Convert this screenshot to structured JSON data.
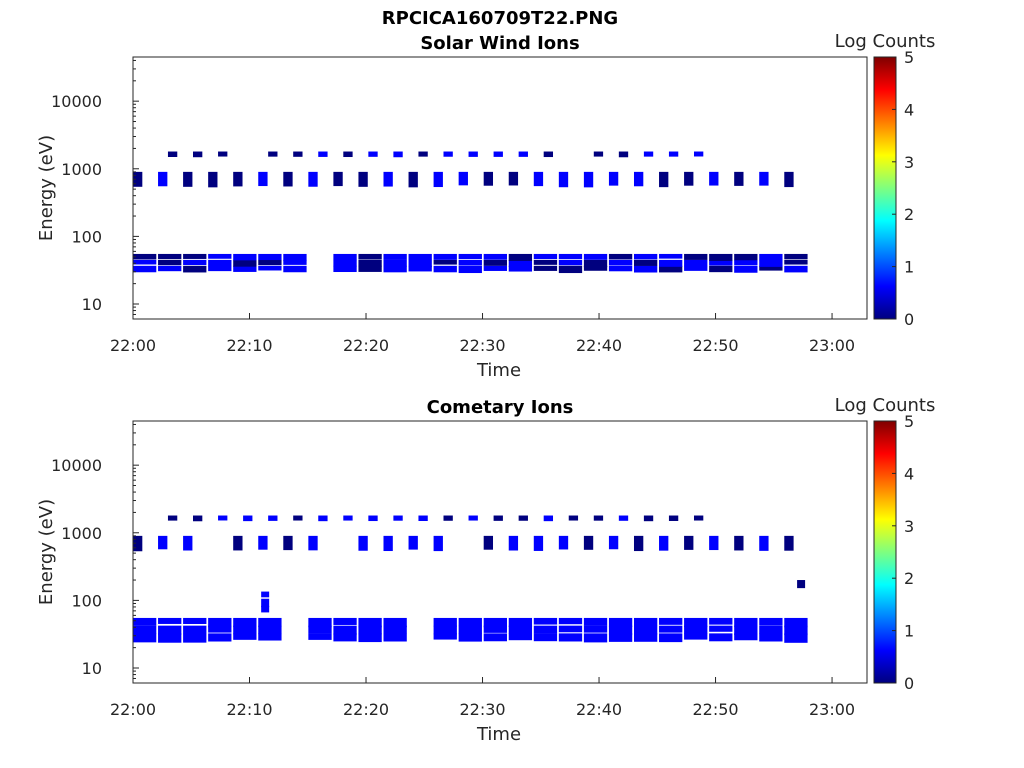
{
  "figure": {
    "title": "RPCICA160709T22.PNG"
  },
  "colors": {
    "axis": "#262626",
    "colormap": [
      "#00007f",
      "#0000ff",
      "#007fff",
      "#00ffff",
      "#7fff7f",
      "#ffff00",
      "#ff7f00",
      "#ff0000",
      "#7f0000"
    ]
  },
  "chart_data": [
    {
      "type": "heatmap",
      "title": "Solar Wind Ions",
      "xlabel": "Time",
      "ylabel": "Energy (eV)",
      "x_ticks": [
        "22:00",
        "22:10",
        "22:20",
        "22:30",
        "22:40",
        "22:50",
        "23:00"
      ],
      "xlim": [
        "22:00",
        "23:03"
      ],
      "y_scale": "log",
      "y_ticks": [
        "10",
        "100",
        "1000",
        "10000"
      ],
      "ylim": [
        6,
        45000
      ],
      "colorbar": {
        "label": "Log Counts",
        "ticks": [
          "0",
          "1",
          "2",
          "3",
          "4",
          "5"
        ],
        "range": [
          0,
          5
        ]
      },
      "bands": [
        {
          "energy_range_eV": [
            30,
            55
          ],
          "t_start": "22:00",
          "t_end": "22:57",
          "level": 0.6
        },
        {
          "energy_range_eV": [
            550,
            900
          ],
          "t_start": "22:00",
          "t_end": "22:57",
          "level": 0.5
        },
        {
          "energy_range_eV": [
            1500,
            1800
          ],
          "t_start": "22:03",
          "t_end": "22:49",
          "level": 0.5
        }
      ]
    },
    {
      "type": "heatmap",
      "title": "Cometary Ions",
      "xlabel": "Time",
      "ylabel": "Energy (eV)",
      "x_ticks": [
        "22:00",
        "22:10",
        "22:20",
        "22:30",
        "22:40",
        "22:50",
        "23:00"
      ],
      "xlim": [
        "22:00",
        "23:03"
      ],
      "y_scale": "log",
      "y_ticks": [
        "10",
        "100",
        "1000",
        "10000"
      ],
      "ylim": [
        6,
        45000
      ],
      "colorbar": {
        "label": "Log Counts",
        "ticks": [
          "0",
          "1",
          "2",
          "3",
          "4",
          "5"
        ],
        "range": [
          0,
          5
        ]
      },
      "bands": [
        {
          "energy_range_eV": [
            25,
            55
          ],
          "t_start": "22:00",
          "t_end": "22:57",
          "level": 0.9
        },
        {
          "energy_range_eV": [
            550,
            900
          ],
          "t_start": "22:00",
          "t_end": "22:57",
          "level": 0.5
        },
        {
          "energy_range_eV": [
            1500,
            1800
          ],
          "t_start": "22:03",
          "t_end": "22:49",
          "level": 0.5
        },
        {
          "energy_range_eV": [
            65,
            135
          ],
          "t_start": "22:11",
          "t_end": "22:11",
          "level": 0.6
        },
        {
          "energy_range_eV": [
            150,
            200
          ],
          "t_start": "22:57",
          "t_end": "22:57",
          "level": 0.6
        }
      ]
    }
  ]
}
